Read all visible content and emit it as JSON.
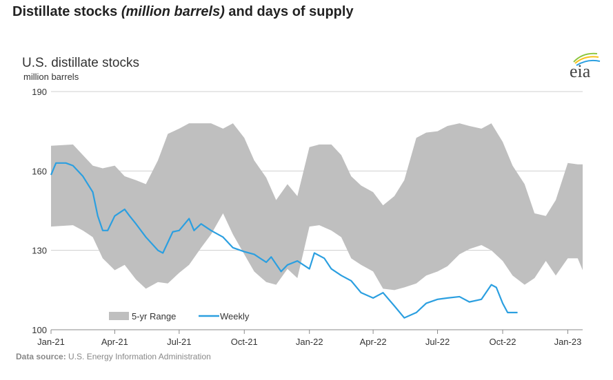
{
  "page_title": {
    "part1": "Distillate stocks ",
    "italic": "(million barrels)",
    "part2": " and days of supply"
  },
  "logo_text": "eia",
  "source": {
    "label": "Data source:",
    "text": " U.S. Energy Information Administration"
  },
  "chart_data": {
    "type": "area",
    "title": "U.S. distillate stocks",
    "ylabel": "million barrels",
    "ylim": [
      100,
      190
    ],
    "yticks": [
      100,
      130,
      160,
      190
    ],
    "xlim": [
      "2021-01-01",
      "2023-01-22"
    ],
    "xticks": [
      {
        "date": "2021-01-01",
        "label": "Jan-21"
      },
      {
        "date": "2021-04-01",
        "label": "Apr-21"
      },
      {
        "date": "2021-07-01",
        "label": "Jul-21"
      },
      {
        "date": "2021-10-01",
        "label": "Oct-21"
      },
      {
        "date": "2022-01-01",
        "label": "Jan-22"
      },
      {
        "date": "2022-04-01",
        "label": "Apr-22"
      },
      {
        "date": "2022-07-01",
        "label": "Jul-22"
      },
      {
        "date": "2022-10-01",
        "label": "Oct-22"
      },
      {
        "date": "2023-01-01",
        "label": "Jan-23"
      }
    ],
    "grid": true,
    "legend_position": "bottom-left",
    "colors": {
      "range": "#bfbfbf",
      "weekly": "#2b9fe0"
    },
    "series": [
      {
        "name": "5-yr Range",
        "kind": "band",
        "x": [
          "2021-01-01",
          "2021-02-01",
          "2021-02-15",
          "2021-03-01",
          "2021-03-15",
          "2021-04-01",
          "2021-04-15",
          "2021-05-01",
          "2021-05-15",
          "2021-06-01",
          "2021-06-15",
          "2021-07-01",
          "2021-07-15",
          "2021-08-01",
          "2021-08-15",
          "2021-09-01",
          "2021-09-15",
          "2021-10-01",
          "2021-10-15",
          "2021-11-01",
          "2021-11-15",
          "2021-12-01",
          "2021-12-15",
          "2022-01-01",
          "2022-01-15",
          "2022-02-01",
          "2022-02-15",
          "2022-03-01",
          "2022-03-15",
          "2022-04-01",
          "2022-04-15",
          "2022-05-01",
          "2022-05-15",
          "2022-06-01",
          "2022-06-15",
          "2022-07-01",
          "2022-07-15",
          "2022-08-01",
          "2022-08-15",
          "2022-09-01",
          "2022-09-15",
          "2022-10-01",
          "2022-10-15",
          "2022-11-01",
          "2022-11-15",
          "2022-12-01",
          "2022-12-15",
          "2023-01-01",
          "2023-01-15",
          "2023-01-22"
        ],
        "high": [
          169.5,
          170,
          166,
          162,
          161,
          162,
          158,
          156.5,
          155,
          164,
          174,
          176,
          178,
          178,
          178,
          176,
          178,
          172.5,
          164,
          157.5,
          149,
          155,
          150.5,
          169,
          170,
          170,
          166,
          158,
          154.5,
          152,
          147,
          150.5,
          156.5,
          172.5,
          174.5,
          175,
          177,
          178,
          177,
          176,
          178,
          171,
          162,
          155,
          144,
          143,
          149,
          163,
          162.5,
          162.5
        ],
        "low": [
          139,
          139.5,
          137.5,
          135,
          127,
          122.5,
          124.5,
          119,
          115.5,
          118,
          117.5,
          121.5,
          124.5,
          131,
          136,
          144,
          136,
          128.5,
          122,
          118,
          117,
          123,
          119.5,
          139,
          139.5,
          137.5,
          135,
          127,
          124.5,
          122,
          115.5,
          115,
          116,
          117.5,
          120.5,
          122,
          124,
          128.5,
          130.5,
          132,
          130,
          126,
          120.5,
          117,
          119.5,
          126,
          120.5,
          127,
          127,
          122.5
        ]
      },
      {
        "name": "Weekly",
        "kind": "line",
        "x": [
          "2021-01-01",
          "2021-01-08",
          "2021-01-22",
          "2021-02-01",
          "2021-02-15",
          "2021-03-01",
          "2021-03-08",
          "2021-03-15",
          "2021-03-22",
          "2021-04-01",
          "2021-04-15",
          "2021-04-22",
          "2021-05-01",
          "2021-05-15",
          "2021-06-01",
          "2021-06-08",
          "2021-06-22",
          "2021-07-01",
          "2021-07-15",
          "2021-07-22",
          "2021-08-01",
          "2021-08-15",
          "2021-09-01",
          "2021-09-15",
          "2021-10-01",
          "2021-10-15",
          "2021-11-01",
          "2021-11-08",
          "2021-11-22",
          "2021-12-01",
          "2021-12-15",
          "2022-01-01",
          "2022-01-08",
          "2022-01-22",
          "2022-02-01",
          "2022-02-15",
          "2022-03-01",
          "2022-03-15",
          "2022-04-01",
          "2022-04-15",
          "2022-05-01",
          "2022-05-15",
          "2022-06-01",
          "2022-06-15",
          "2022-07-01",
          "2022-07-15",
          "2022-08-01",
          "2022-08-15",
          "2022-09-01",
          "2022-09-15",
          "2022-09-22",
          "2022-10-01",
          "2022-10-08",
          "2022-10-22"
        ],
        "y": [
          158.5,
          163,
          163,
          162,
          158,
          152,
          143,
          137.5,
          137.5,
          143,
          145.5,
          143,
          140,
          135,
          130,
          129,
          137,
          137.5,
          142,
          137.5,
          140,
          137.5,
          135,
          131,
          129.5,
          128.5,
          125.5,
          127.5,
          122,
          124.5,
          126,
          123,
          129,
          127,
          123,
          120.5,
          118.5,
          114,
          112,
          114,
          109,
          104.5,
          106.5,
          110,
          111.5,
          112,
          112.5,
          110.5,
          111.5,
          117,
          116,
          110,
          106.5,
          106.5
        ]
      }
    ]
  }
}
